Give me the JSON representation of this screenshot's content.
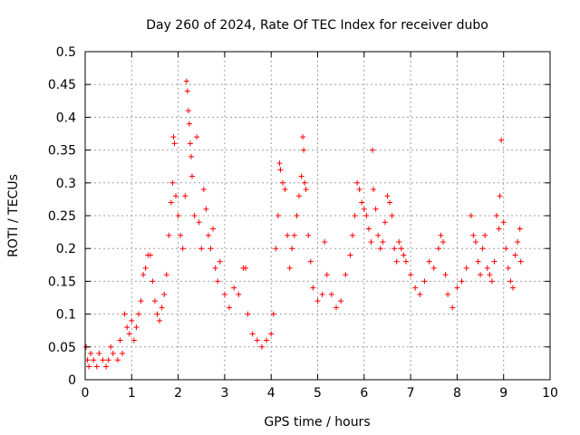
{
  "chart_data": {
    "type": "scatter",
    "title": "Day 260 of 2024, Rate Of TEC Index for receiver dubo",
    "xlabel": "GPS time / hours",
    "ylabel": "ROTI / TECUs",
    "xlim": [
      0,
      10
    ],
    "ylim": [
      0,
      0.5
    ],
    "xticks": [
      "0",
      "1",
      "2",
      "3",
      "4",
      "5",
      "6",
      "7",
      "8",
      "9",
      "10"
    ],
    "yticks": [
      "0",
      "0.05",
      "0.1",
      "0.15",
      "0.2",
      "0.25",
      "0.3",
      "0.35",
      "0.4",
      "0.45",
      "0.5"
    ],
    "grid": true,
    "marker": "+",
    "color": "#ff0000",
    "series": [
      {
        "name": "ROTI",
        "points": [
          [
            0.02,
            0.05
          ],
          [
            0.05,
            0.03
          ],
          [
            0.08,
            0.02
          ],
          [
            0.12,
            0.04
          ],
          [
            0.18,
            0.03
          ],
          [
            0.25,
            0.02
          ],
          [
            0.3,
            0.04
          ],
          [
            0.38,
            0.03
          ],
          [
            0.45,
            0.02
          ],
          [
            0.5,
            0.03
          ],
          [
            0.55,
            0.05
          ],
          [
            0.6,
            0.04
          ],
          [
            0.7,
            0.03
          ],
          [
            0.75,
            0.06
          ],
          [
            0.8,
            0.04
          ],
          [
            0.85,
            0.1
          ],
          [
            0.9,
            0.08
          ],
          [
            0.95,
            0.07
          ],
          [
            1.0,
            0.09
          ],
          [
            1.05,
            0.06
          ],
          [
            1.1,
            0.08
          ],
          [
            1.15,
            0.1
          ],
          [
            1.2,
            0.12
          ],
          [
            1.25,
            0.16
          ],
          [
            1.3,
            0.17
          ],
          [
            1.35,
            0.19
          ],
          [
            1.4,
            0.19
          ],
          [
            1.45,
            0.15
          ],
          [
            1.5,
            0.12
          ],
          [
            1.55,
            0.1
          ],
          [
            1.6,
            0.09
          ],
          [
            1.65,
            0.11
          ],
          [
            1.7,
            0.13
          ],
          [
            1.75,
            0.16
          ],
          [
            1.8,
            0.22
          ],
          [
            1.85,
            0.27
          ],
          [
            1.88,
            0.3
          ],
          [
            1.9,
            0.37
          ],
          [
            1.92,
            0.36
          ],
          [
            1.95,
            0.28
          ],
          [
            2.0,
            0.25
          ],
          [
            2.05,
            0.22
          ],
          [
            2.1,
            0.2
          ],
          [
            2.15,
            0.28
          ],
          [
            2.18,
            0.455
          ],
          [
            2.2,
            0.44
          ],
          [
            2.22,
            0.41
          ],
          [
            2.24,
            0.39
          ],
          [
            2.26,
            0.36
          ],
          [
            2.28,
            0.34
          ],
          [
            2.3,
            0.31
          ],
          [
            2.35,
            0.25
          ],
          [
            2.4,
            0.37
          ],
          [
            2.45,
            0.24
          ],
          [
            2.5,
            0.2
          ],
          [
            2.55,
            0.29
          ],
          [
            2.6,
            0.26
          ],
          [
            2.65,
            0.22
          ],
          [
            2.7,
            0.2
          ],
          [
            2.75,
            0.23
          ],
          [
            2.8,
            0.17
          ],
          [
            2.85,
            0.15
          ],
          [
            2.9,
            0.18
          ],
          [
            3.0,
            0.13
          ],
          [
            3.1,
            0.11
          ],
          [
            3.2,
            0.14
          ],
          [
            3.3,
            0.13
          ],
          [
            3.4,
            0.17
          ],
          [
            3.45,
            0.17
          ],
          [
            3.5,
            0.1
          ],
          [
            3.6,
            0.07
          ],
          [
            3.7,
            0.06
          ],
          [
            3.8,
            0.05
          ],
          [
            3.9,
            0.06
          ],
          [
            4.0,
            0.07
          ],
          [
            4.05,
            0.1
          ],
          [
            4.1,
            0.2
          ],
          [
            4.15,
            0.25
          ],
          [
            4.18,
            0.33
          ],
          [
            4.2,
            0.32
          ],
          [
            4.25,
            0.3
          ],
          [
            4.3,
            0.29
          ],
          [
            4.35,
            0.22
          ],
          [
            4.4,
            0.17
          ],
          [
            4.45,
            0.2
          ],
          [
            4.5,
            0.22
          ],
          [
            4.55,
            0.25
          ],
          [
            4.6,
            0.28
          ],
          [
            4.65,
            0.31
          ],
          [
            4.68,
            0.37
          ],
          [
            4.7,
            0.35
          ],
          [
            4.72,
            0.3
          ],
          [
            4.75,
            0.29
          ],
          [
            4.8,
            0.22
          ],
          [
            4.85,
            0.18
          ],
          [
            4.9,
            0.14
          ],
          [
            5.0,
            0.12
          ],
          [
            5.1,
            0.13
          ],
          [
            5.15,
            0.21
          ],
          [
            5.2,
            0.16
          ],
          [
            5.3,
            0.13
          ],
          [
            5.4,
            0.11
          ],
          [
            5.5,
            0.12
          ],
          [
            5.6,
            0.16
          ],
          [
            5.7,
            0.19
          ],
          [
            5.75,
            0.22
          ],
          [
            5.8,
            0.25
          ],
          [
            5.85,
            0.3
          ],
          [
            5.9,
            0.29
          ],
          [
            5.95,
            0.27
          ],
          [
            6.0,
            0.26
          ],
          [
            6.05,
            0.25
          ],
          [
            6.1,
            0.23
          ],
          [
            6.15,
            0.21
          ],
          [
            6.18,
            0.35
          ],
          [
            6.2,
            0.29
          ],
          [
            6.25,
            0.26
          ],
          [
            6.3,
            0.22
          ],
          [
            6.35,
            0.2
          ],
          [
            6.4,
            0.21
          ],
          [
            6.45,
            0.24
          ],
          [
            6.5,
            0.28
          ],
          [
            6.55,
            0.27
          ],
          [
            6.6,
            0.25
          ],
          [
            6.65,
            0.2
          ],
          [
            6.7,
            0.18
          ],
          [
            6.75,
            0.21
          ],
          [
            6.8,
            0.2
          ],
          [
            6.85,
            0.19
          ],
          [
            6.9,
            0.18
          ],
          [
            7.0,
            0.16
          ],
          [
            7.1,
            0.14
          ],
          [
            7.2,
            0.13
          ],
          [
            7.3,
            0.15
          ],
          [
            7.4,
            0.18
          ],
          [
            7.5,
            0.17
          ],
          [
            7.6,
            0.2
          ],
          [
            7.65,
            0.22
          ],
          [
            7.7,
            0.21
          ],
          [
            7.75,
            0.16
          ],
          [
            7.8,
            0.13
          ],
          [
            7.9,
            0.11
          ],
          [
            8.0,
            0.14
          ],
          [
            8.1,
            0.15
          ],
          [
            8.2,
            0.17
          ],
          [
            8.3,
            0.25
          ],
          [
            8.35,
            0.22
          ],
          [
            8.4,
            0.21
          ],
          [
            8.45,
            0.18
          ],
          [
            8.5,
            0.16
          ],
          [
            8.55,
            0.2
          ],
          [
            8.6,
            0.22
          ],
          [
            8.65,
            0.17
          ],
          [
            8.7,
            0.16
          ],
          [
            8.75,
            0.15
          ],
          [
            8.8,
            0.18
          ],
          [
            8.85,
            0.25
          ],
          [
            8.9,
            0.23
          ],
          [
            8.92,
            0.28
          ],
          [
            8.95,
            0.365
          ],
          [
            9.0,
            0.24
          ],
          [
            9.05,
            0.2
          ],
          [
            9.1,
            0.17
          ],
          [
            9.15,
            0.15
          ],
          [
            9.2,
            0.14
          ],
          [
            9.25,
            0.19
          ],
          [
            9.3,
            0.21
          ],
          [
            9.35,
            0.23
          ],
          [
            9.37,
            0.18
          ]
        ]
      }
    ]
  }
}
